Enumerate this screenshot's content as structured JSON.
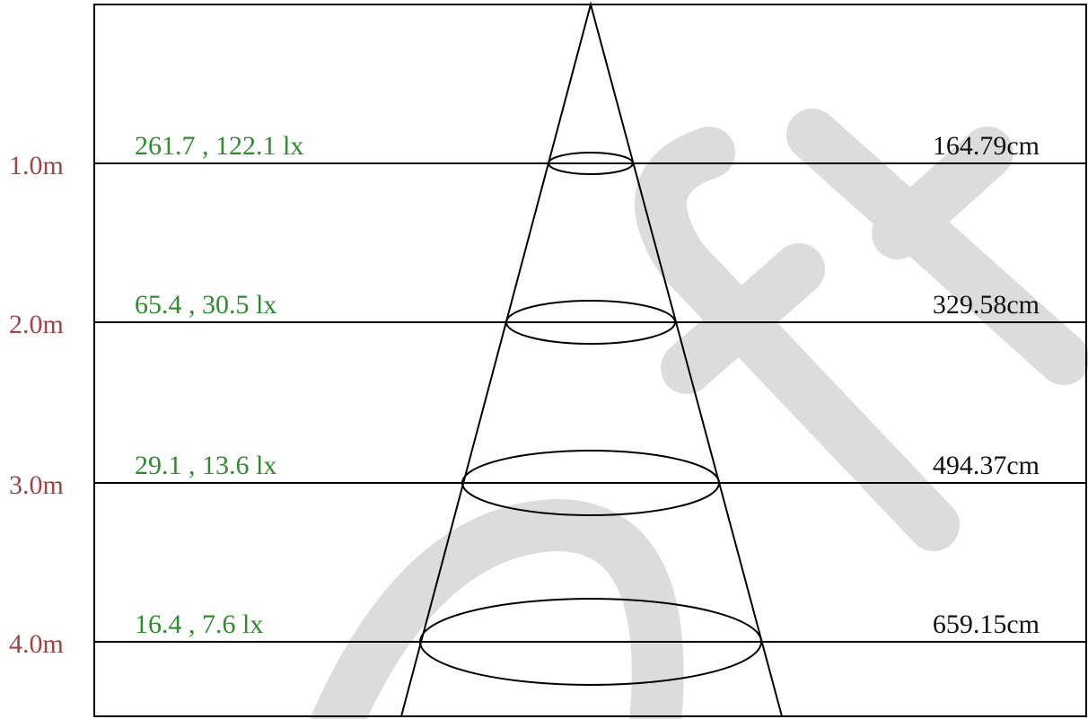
{
  "levels": [
    {
      "distance": "1.0m",
      "illuminance": "261.7 , 122.1 lx",
      "diameter": "164.79cm"
    },
    {
      "distance": "2.0m",
      "illuminance": "65.4 , 30.5 lx",
      "diameter": "329.58cm"
    },
    {
      "distance": "3.0m",
      "illuminance": "29.1 , 13.6 lx",
      "diameter": "494.37cm"
    },
    {
      "distance": "4.0m",
      "illuminance": "16.4 , 7.6 lx",
      "diameter": "659.15cm"
    }
  ]
}
